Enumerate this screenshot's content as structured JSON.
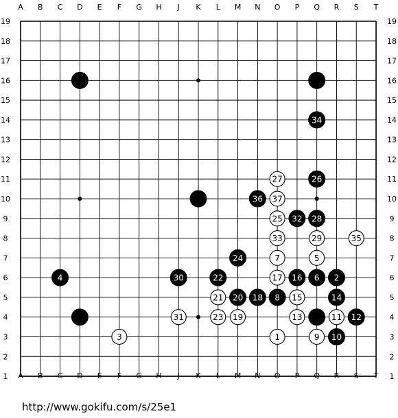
{
  "board": {
    "size": 19,
    "column_labels": [
      "A",
      "B",
      "C",
      "D",
      "E",
      "F",
      "G",
      "H",
      "J",
      "K",
      "L",
      "M",
      "N",
      "O",
      "P",
      "Q",
      "R",
      "S",
      "T"
    ],
    "row_labels": [
      "19",
      "18",
      "17",
      "16",
      "15",
      "14",
      "13",
      "12",
      "11",
      "10",
      "9",
      "8",
      "7",
      "6",
      "5",
      "4",
      "3",
      "2",
      "1"
    ],
    "star_points": [
      "D16",
      "K16",
      "Q16",
      "D10",
      "K10",
      "Q10",
      "D4",
      "K4",
      "Q4"
    ],
    "handicap_stones": [
      "D16",
      "Q16",
      "K10",
      "D4",
      "Q4"
    ],
    "moves": [
      {
        "n": 1,
        "color": "white",
        "point": "O3"
      },
      {
        "n": 2,
        "color": "black",
        "point": "R6"
      },
      {
        "n": 3,
        "color": "white",
        "point": "F3"
      },
      {
        "n": 4,
        "color": "black",
        "point": "C6"
      },
      {
        "n": 5,
        "color": "white",
        "point": "Q7"
      },
      {
        "n": 6,
        "color": "black",
        "point": "Q6"
      },
      {
        "n": 7,
        "color": "white",
        "point": "O7"
      },
      {
        "n": 8,
        "color": "black",
        "point": "O5"
      },
      {
        "n": 9,
        "color": "white",
        "point": "Q3"
      },
      {
        "n": 10,
        "color": "black",
        "point": "R3"
      },
      {
        "n": 11,
        "color": "white",
        "point": "R4"
      },
      {
        "n": 12,
        "color": "black",
        "point": "S4"
      },
      {
        "n": 13,
        "color": "white",
        "point": "P4"
      },
      {
        "n": 14,
        "color": "black",
        "point": "R5"
      },
      {
        "n": 15,
        "color": "white",
        "point": "P5"
      },
      {
        "n": 16,
        "color": "black",
        "point": "P6"
      },
      {
        "n": 17,
        "color": "white",
        "point": "O6"
      },
      {
        "n": 18,
        "color": "black",
        "point": "N5"
      },
      {
        "n": 19,
        "color": "white",
        "point": "M4"
      },
      {
        "n": 20,
        "color": "black",
        "point": "M5"
      },
      {
        "n": 21,
        "color": "white",
        "point": "L5"
      },
      {
        "n": 22,
        "color": "black",
        "point": "L6"
      },
      {
        "n": 23,
        "color": "white",
        "point": "L4"
      },
      {
        "n": 24,
        "color": "black",
        "point": "M7"
      },
      {
        "n": 25,
        "color": "white",
        "point": "O9"
      },
      {
        "n": 26,
        "color": "black",
        "point": "Q11"
      },
      {
        "n": 27,
        "color": "white",
        "point": "O11"
      },
      {
        "n": 28,
        "color": "black",
        "point": "Q9"
      },
      {
        "n": 29,
        "color": "white",
        "point": "Q8"
      },
      {
        "n": 30,
        "color": "black",
        "point": "J6"
      },
      {
        "n": 31,
        "color": "white",
        "point": "J4"
      },
      {
        "n": 32,
        "color": "black",
        "point": "P9"
      },
      {
        "n": 33,
        "color": "white",
        "point": "O8"
      },
      {
        "n": 34,
        "color": "black",
        "point": "Q14"
      },
      {
        "n": 35,
        "color": "white",
        "point": "S8"
      },
      {
        "n": 36,
        "color": "black",
        "point": "N10"
      },
      {
        "n": 37,
        "color": "white",
        "point": "O10"
      }
    ]
  },
  "footer": {
    "url": "http://www.gokifu.com/s/25e1"
  }
}
